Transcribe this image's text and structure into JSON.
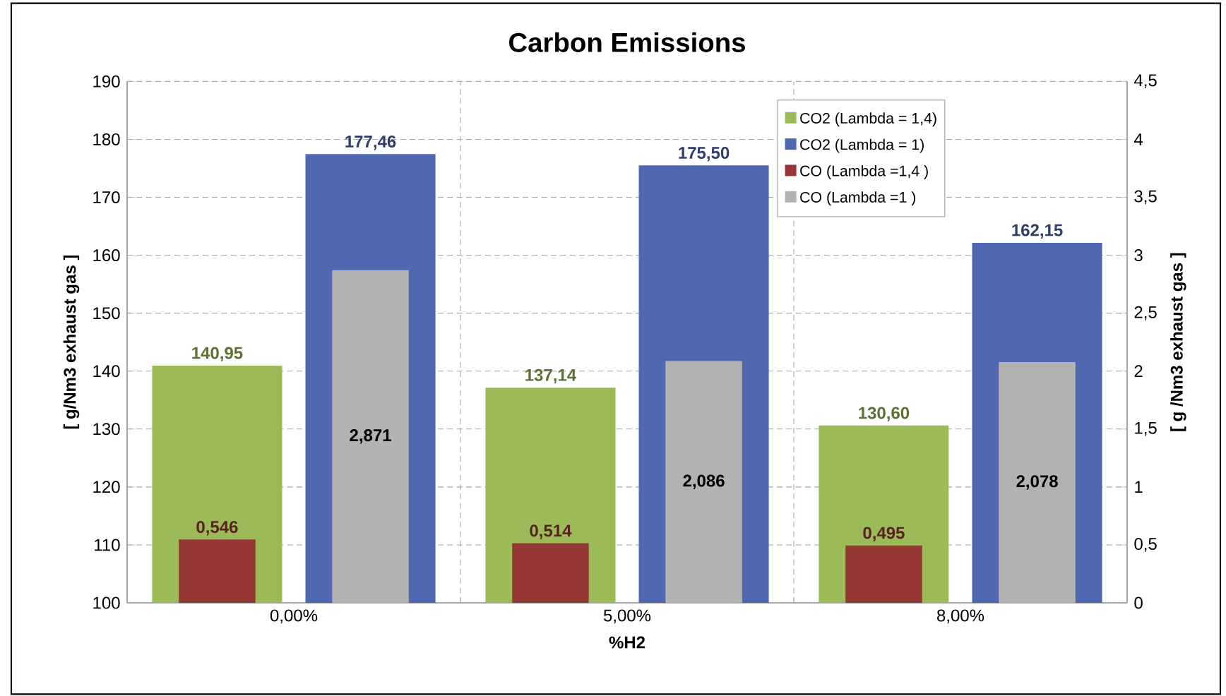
{
  "chart_data": {
    "type": "bar",
    "title": "Carbon Emissions",
    "xlabel": "%H2",
    "ylabel": "[ g/Nm3 exhaust gas ]",
    "y2label": "[ g /Nm3 exhaust gas ]",
    "categories": [
      "0,00%",
      "5,00%",
      "8,00%"
    ],
    "series": [
      {
        "name": "CO2 (Lambda = 1,4)",
        "color": "#9bbb59",
        "values": [
          140.95,
          137.14,
          130.6
        ],
        "value_labels": [
          "140,95",
          "137,14",
          "130,60"
        ]
      },
      {
        "name": "CO2 (Lambda = 1)",
        "color": "#4f67b0",
        "values": [
          177.46,
          175.5,
          162.15
        ],
        "value_labels": [
          "177,46",
          "175,50",
          "162,15"
        ]
      },
      {
        "name": "CO (Lambda =1,4 )",
        "color": "#953735",
        "axis": "y2",
        "values": [
          0.546,
          0.514,
          0.495
        ],
        "value_labels": [
          "0,546",
          "0,514",
          "0,495"
        ]
      },
      {
        "name": "CO (Lambda =1 )",
        "color": "#b2b2b2",
        "axis": "y2",
        "values": [
          2.871,
          2.086,
          2.078
        ],
        "value_labels": [
          "2,871",
          "2,086",
          "2,078"
        ]
      }
    ],
    "ylim": [
      100,
      190
    ],
    "yticks": [
      100,
      110,
      120,
      130,
      140,
      150,
      160,
      170,
      180,
      190
    ],
    "y2lim": [
      0,
      4.5
    ],
    "y2ticks": [
      0,
      {
        "value": 0.5,
        "label": "0,5"
      },
      1,
      {
        "value": 1.5,
        "label": "1,5"
      },
      2,
      {
        "value": 2.5,
        "label": "2,5"
      },
      3,
      {
        "value": 3.5,
        "label": "3,5"
      },
      4,
      {
        "value": 4.5,
        "label": "4,5"
      }
    ],
    "grid": true,
    "legend": "top right"
  }
}
